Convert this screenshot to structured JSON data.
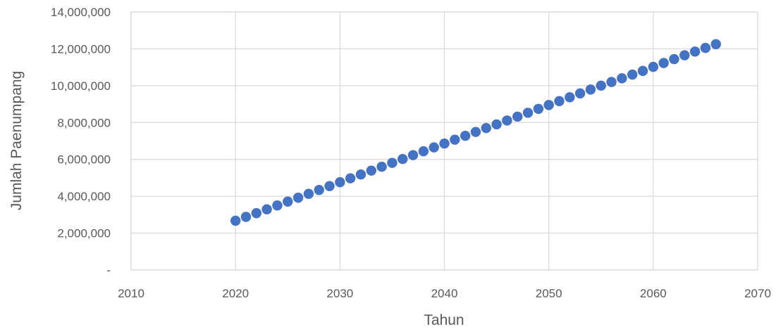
{
  "chart_data": {
    "type": "scatter",
    "xlabel": "Tahun",
    "ylabel": "Jumlah Paenumpang",
    "xlim": [
      2010,
      2070
    ],
    "ylim": [
      0,
      14000000
    ],
    "grid": true,
    "legend": "none",
    "marker_color": "#4472c4",
    "x_ticks": [
      "2010",
      "2020",
      "2030",
      "2040",
      "2050",
      "2060",
      "2070"
    ],
    "y_ticks": [
      "-",
      "2,000,000",
      "4,000,000",
      "6,000,000",
      "8,000,000",
      "10,000,000",
      "12,000,000",
      "14,000,000"
    ],
    "x_tick_values": [
      2010,
      2020,
      2030,
      2040,
      2050,
      2060,
      2070
    ],
    "y_tick_values": [
      0,
      2000000,
      4000000,
      6000000,
      8000000,
      10000000,
      12000000,
      14000000
    ],
    "series": [
      {
        "x": [
          2020,
          2021,
          2022,
          2023,
          2024,
          2025,
          2026,
          2027,
          2028,
          2029,
          2030,
          2031,
          2032,
          2033,
          2034,
          2035,
          2036,
          2037,
          2038,
          2039,
          2040,
          2041,
          2042,
          2043,
          2044,
          2045,
          2046,
          2047,
          2048,
          2049,
          2050,
          2051,
          2052,
          2053,
          2054,
          2055,
          2056,
          2057,
          2058,
          2059,
          2060,
          2061,
          2062,
          2063,
          2064,
          2065,
          2066
        ],
        "y": [
          2670000,
          2880000,
          3080000,
          3290000,
          3500000,
          3710000,
          3920000,
          4130000,
          4340000,
          4550000,
          4760000,
          4970000,
          5180000,
          5390000,
          5600000,
          5810000,
          6020000,
          6230000,
          6440000,
          6650000,
          6860000,
          7070000,
          7280000,
          7490000,
          7700000,
          7900000,
          8110000,
          8320000,
          8530000,
          8740000,
          8950000,
          9160000,
          9370000,
          9580000,
          9790000,
          10000000,
          10200000,
          10400000,
          10600000,
          10800000,
          11020000,
          11230000,
          11440000,
          11650000,
          11850000,
          12050000,
          12250000
        ]
      }
    ]
  }
}
